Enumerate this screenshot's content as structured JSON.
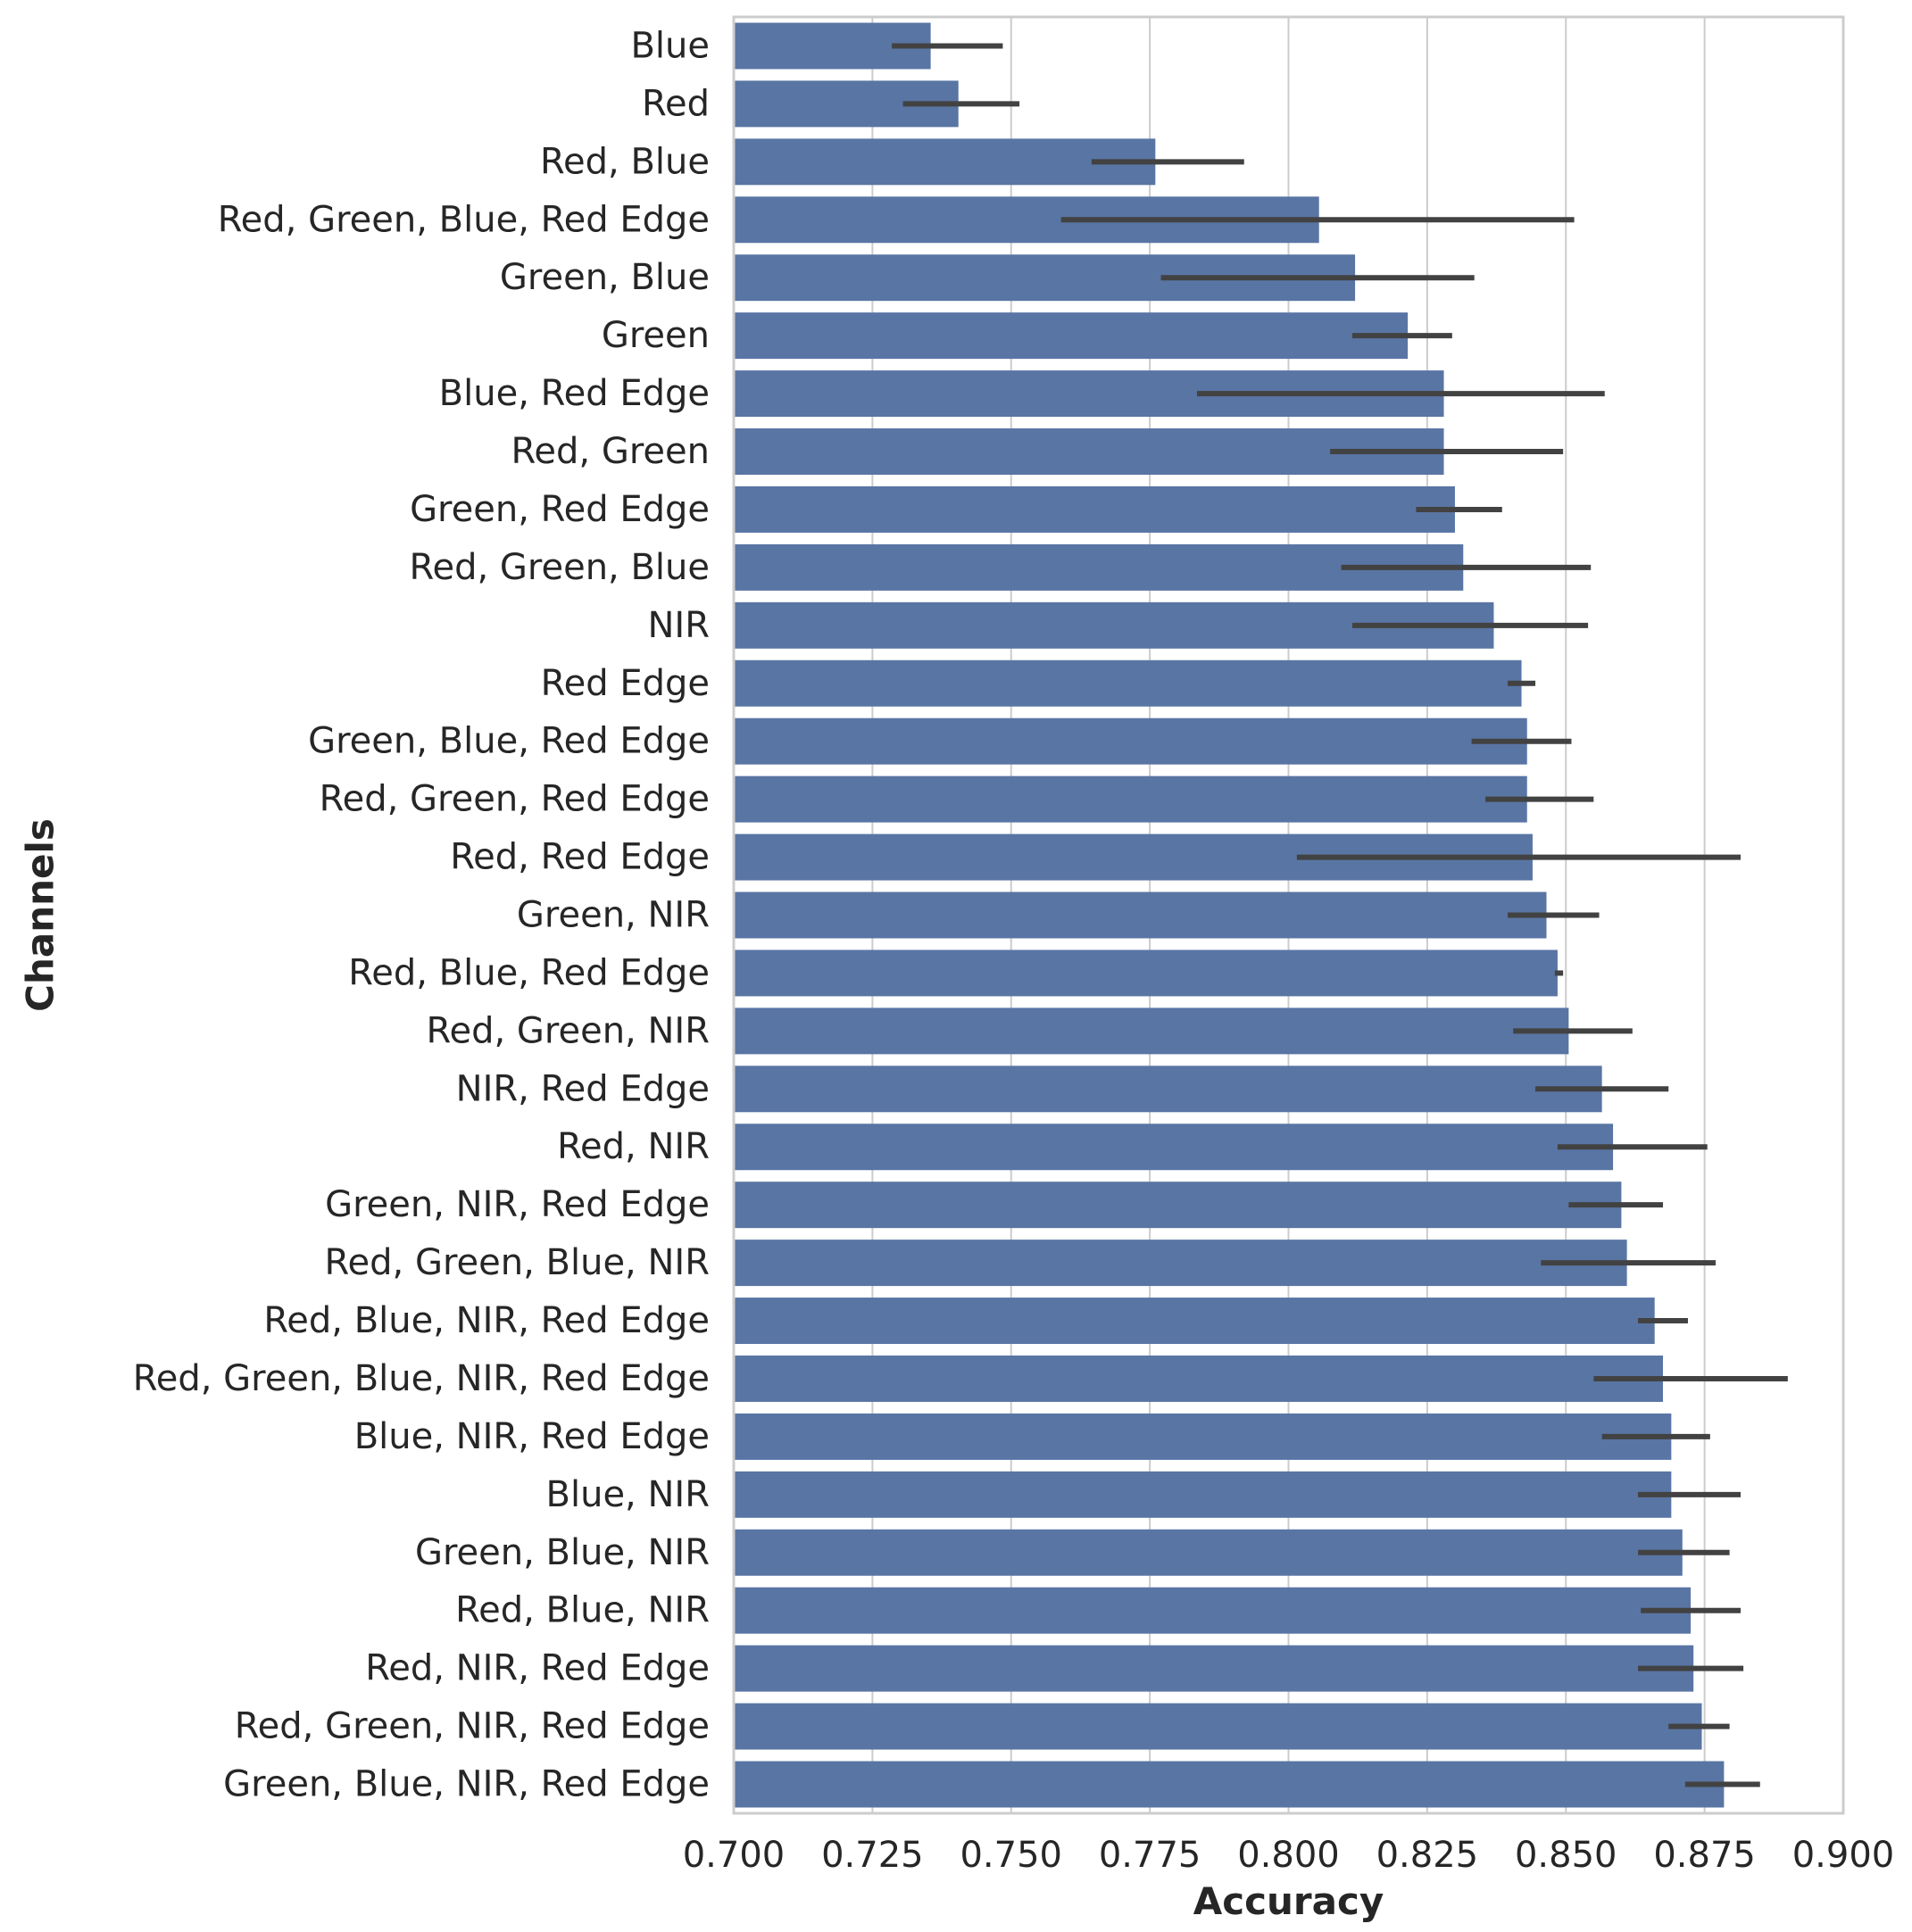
{
  "chart_data": {
    "type": "bar",
    "orientation": "horizontal",
    "xlabel": "Accuracy",
    "ylabel": "Channels",
    "xlim": [
      0.7,
      0.9
    ],
    "xticks": [
      "0.700",
      "0.725",
      "0.750",
      "0.775",
      "0.800",
      "0.825",
      "0.850",
      "0.875",
      "0.900"
    ],
    "grid": true,
    "bar_color": "#5975a4",
    "error_color": "#424242",
    "bars": [
      {
        "label": "Blue",
        "value": 0.7355,
        "err_low": 0.7285,
        "err_high": 0.7485
      },
      {
        "label": "Red",
        "value": 0.7405,
        "err_low": 0.7305,
        "err_high": 0.7515
      },
      {
        "label": "Red, Blue",
        "value": 0.776,
        "err_low": 0.7645,
        "err_high": 0.792
      },
      {
        "label": "Red, Green, Blue, Red Edge",
        "value": 0.8055,
        "err_low": 0.759,
        "err_high": 0.8515
      },
      {
        "label": "Green, Blue",
        "value": 0.812,
        "err_low": 0.777,
        "err_high": 0.8335
      },
      {
        "label": "Green",
        "value": 0.8215,
        "err_low": 0.8115,
        "err_high": 0.8295
      },
      {
        "label": "Blue, Red Edge",
        "value": 0.828,
        "err_low": 0.7835,
        "err_high": 0.857
      },
      {
        "label": "Red, Green",
        "value": 0.828,
        "err_low": 0.8075,
        "err_high": 0.8495
      },
      {
        "label": "Green, Red Edge",
        "value": 0.83,
        "err_low": 0.823,
        "err_high": 0.8385
      },
      {
        "label": "Red, Green, Blue",
        "value": 0.8315,
        "err_low": 0.8095,
        "err_high": 0.8545
      },
      {
        "label": "NIR",
        "value": 0.837,
        "err_low": 0.8115,
        "err_high": 0.854
      },
      {
        "label": "Red Edge",
        "value": 0.842,
        "err_low": 0.8395,
        "err_high": 0.8445
      },
      {
        "label": "Green, Blue, Red Edge",
        "value": 0.843,
        "err_low": 0.833,
        "err_high": 0.851
      },
      {
        "label": "Red, Green, Red Edge",
        "value": 0.843,
        "err_low": 0.8355,
        "err_high": 0.855
      },
      {
        "label": "Red, Red Edge",
        "value": 0.844,
        "err_low": 0.8015,
        "err_high": 0.8815
      },
      {
        "label": "Green, NIR",
        "value": 0.8465,
        "err_low": 0.8395,
        "err_high": 0.856
      },
      {
        "label": "Red, Blue, Red Edge",
        "value": 0.8485,
        "err_low": 0.848,
        "err_high": 0.8495
      },
      {
        "label": "Red, Green, NIR",
        "value": 0.8505,
        "err_low": 0.8405,
        "err_high": 0.862
      },
      {
        "label": "NIR, Red Edge",
        "value": 0.8565,
        "err_low": 0.8445,
        "err_high": 0.8685
      },
      {
        "label": "Red, NIR",
        "value": 0.8585,
        "err_low": 0.8485,
        "err_high": 0.8755
      },
      {
        "label": "Green, NIR, Red Edge",
        "value": 0.86,
        "err_low": 0.8505,
        "err_high": 0.8675
      },
      {
        "label": "Red, Green, Blue, NIR",
        "value": 0.861,
        "err_low": 0.8455,
        "err_high": 0.877
      },
      {
        "label": "Red, Blue, NIR, Red Edge",
        "value": 0.866,
        "err_low": 0.863,
        "err_high": 0.872
      },
      {
        "label": "Red, Green, Blue, NIR, Red Edge",
        "value": 0.8675,
        "err_low": 0.855,
        "err_high": 0.89
      },
      {
        "label": "Blue, NIR, Red Edge",
        "value": 0.869,
        "err_low": 0.8565,
        "err_high": 0.876
      },
      {
        "label": "Blue, NIR",
        "value": 0.869,
        "err_low": 0.863,
        "err_high": 0.8815
      },
      {
        "label": "Green, Blue, NIR",
        "value": 0.871,
        "err_low": 0.863,
        "err_high": 0.8795
      },
      {
        "label": "Red, Blue, NIR",
        "value": 0.8725,
        "err_low": 0.8635,
        "err_high": 0.8815
      },
      {
        "label": "Red, NIR, Red Edge",
        "value": 0.873,
        "err_low": 0.863,
        "err_high": 0.882
      },
      {
        "label": "Red, Green, NIR, Red Edge",
        "value": 0.8745,
        "err_low": 0.8685,
        "err_high": 0.8795
      },
      {
        "label": "Green, Blue, NIR, Red Edge",
        "value": 0.8785,
        "err_low": 0.8715,
        "err_high": 0.885
      }
    ]
  }
}
